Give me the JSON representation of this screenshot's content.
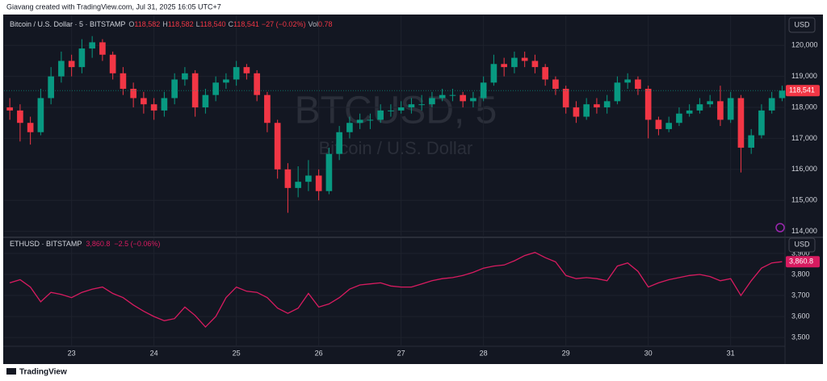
{
  "header": {
    "credit": "Giavang created with TradingView.com, Jul 31, 2025 16:05 UTC+7"
  },
  "footer": {
    "brand": "TradingView"
  },
  "chart_data": [
    {
      "type": "candlestick",
      "legend": {
        "symbol": "Bitcoin / U.S. Dollar · 5 · BITSTAMP",
        "fields": [
          {
            "label": "O",
            "value": "118,582"
          },
          {
            "label": "H",
            "value": "118,582"
          },
          {
            "label": "L",
            "value": "118,540"
          },
          {
            "label": "C",
            "value": "118,541"
          }
        ],
        "change": "−27 (−0.02%)",
        "volume": {
          "label": "Vol",
          "value": "0.78"
        }
      },
      "watermark": {
        "title": "BTCUSD, 5",
        "subtitle": "Bitcoin / U.S. Dollar"
      },
      "currency": "USD",
      "up_color": "#089981",
      "down_color": "#f23645",
      "x": [
        22.25,
        22.375,
        22.5,
        22.625,
        22.75,
        22.875,
        23,
        23.125,
        23.25,
        23.375,
        23.5,
        23.625,
        23.75,
        23.875,
        24,
        24.125,
        24.25,
        24.375,
        24.5,
        24.625,
        24.75,
        24.875,
        25,
        25.125,
        25.25,
        25.375,
        25.5,
        25.625,
        25.75,
        25.875,
        26,
        26.125,
        26.25,
        26.375,
        26.5,
        26.625,
        26.75,
        26.875,
        27,
        27.125,
        27.25,
        27.375,
        27.5,
        27.625,
        27.75,
        27.875,
        28,
        28.125,
        28.25,
        28.375,
        28.5,
        28.625,
        28.75,
        28.875,
        29,
        29.125,
        29.25,
        29.375,
        29.5,
        29.625,
        29.75,
        29.875,
        30,
        30.125,
        30.25,
        30.375,
        30.5,
        30.625,
        30.75,
        30.875,
        31,
        31.125,
        31.25,
        31.375,
        31.5,
        31.625
      ],
      "values": [
        [
          118000,
          118300,
          117600,
          117900
        ],
        [
          117900,
          118100,
          116900,
          117500
        ],
        [
          117500,
          117700,
          116800,
          117200
        ],
        [
          117200,
          118600,
          117100,
          118300
        ],
        [
          118300,
          119300,
          118100,
          119000
        ],
        [
          119000,
          119800,
          118800,
          119500
        ],
        [
          119500,
          119700,
          119000,
          119300
        ],
        [
          119300,
          120200,
          119100,
          119900
        ],
        [
          119900,
          120300,
          119600,
          120100
        ],
        [
          120100,
          120200,
          119500,
          119700
        ],
        [
          119700,
          119800,
          118900,
          119100
        ],
        [
          119100,
          119300,
          118400,
          118600
        ],
        [
          118600,
          118800,
          118000,
          118300
        ],
        [
          118300,
          118500,
          117800,
          118100
        ],
        [
          118100,
          118300,
          117600,
          117900
        ],
        [
          117900,
          118500,
          117700,
          118300
        ],
        [
          118300,
          119100,
          118100,
          118900
        ],
        [
          118900,
          119300,
          118700,
          119100
        ],
        [
          119100,
          119200,
          117700,
          118000
        ],
        [
          118000,
          118600,
          117800,
          118400
        ],
        [
          118400,
          119000,
          118200,
          118800
        ],
        [
          118800,
          119100,
          118600,
          118900
        ],
        [
          118900,
          119500,
          118700,
          119300
        ],
        [
          119300,
          119400,
          118900,
          119100
        ],
        [
          119100,
          119200,
          118200,
          118400
        ],
        [
          118400,
          118500,
          117200,
          117500
        ],
        [
          117500,
          117600,
          115700,
          116000
        ],
        [
          116000,
          116200,
          114600,
          115400
        ],
        [
          115400,
          116100,
          115100,
          115600
        ],
        [
          115600,
          116300,
          115300,
          115800
        ],
        [
          115800,
          116000,
          115000,
          115300
        ],
        [
          115300,
          116700,
          115200,
          116500
        ],
        [
          116500,
          117400,
          116300,
          117200
        ],
        [
          117200,
          117700,
          117000,
          117500
        ],
        [
          117500,
          117800,
          117300,
          117600
        ],
        [
          117600,
          117800,
          117300,
          117600
        ],
        [
          117600,
          118100,
          117500,
          117900
        ],
        [
          117900,
          118100,
          117700,
          117900
        ],
        [
          117900,
          118200,
          117800,
          118000
        ],
        [
          118000,
          118300,
          117800,
          118100
        ],
        [
          118100,
          118400,
          117900,
          118100
        ],
        [
          118100,
          118500,
          118000,
          118300
        ],
        [
          118300,
          118600,
          118200,
          118400
        ],
        [
          118400,
          118600,
          118200,
          118400
        ],
        [
          118400,
          118500,
          118000,
          118200
        ],
        [
          118200,
          118500,
          118000,
          118300
        ],
        [
          118300,
          119000,
          118200,
          118800
        ],
        [
          118800,
          119700,
          118700,
          119400
        ],
        [
          119400,
          119600,
          119000,
          119300
        ],
        [
          119300,
          119800,
          119100,
          119600
        ],
        [
          119600,
          119800,
          119300,
          119500
        ],
        [
          119500,
          119700,
          119100,
          119300
        ],
        [
          119300,
          119400,
          118700,
          118900
        ],
        [
          118900,
          119000,
          118400,
          118600
        ],
        [
          118600,
          118700,
          117800,
          118000
        ],
        [
          118000,
          118200,
          117500,
          117700
        ],
        [
          117700,
          118300,
          117600,
          118100
        ],
        [
          118100,
          118300,
          117800,
          118000
        ],
        [
          118000,
          118400,
          117800,
          118200
        ],
        [
          118200,
          119000,
          118100,
          118800
        ],
        [
          118800,
          119100,
          118600,
          118900
        ],
        [
          118900,
          119000,
          118400,
          118600
        ],
        [
          118600,
          118700,
          117000,
          117600
        ],
        [
          117600,
          117700,
          117100,
          117300
        ],
        [
          117300,
          117700,
          117200,
          117500
        ],
        [
          117500,
          118000,
          117400,
          117800
        ],
        [
          117800,
          118100,
          117700,
          117900
        ],
        [
          117900,
          118300,
          117800,
          118100
        ],
        [
          118100,
          118400,
          118000,
          118200
        ],
        [
          118200,
          118700,
          117400,
          117600
        ],
        [
          117600,
          118500,
          117500,
          118300
        ],
        [
          118300,
          118400,
          115900,
          116700
        ],
        [
          116700,
          117300,
          116500,
          117100
        ],
        [
          117100,
          118100,
          117000,
          117900
        ],
        [
          117900,
          118500,
          117800,
          118300
        ],
        [
          118300,
          118700,
          118200,
          118541
        ]
      ],
      "last_value_label": "118,541",
      "ylim": [
        113860,
        120970
      ],
      "yticks": [
        {
          "value": 114000,
          "label": "114,000"
        },
        {
          "value": 115000,
          "label": "115,000"
        },
        {
          "value": 116000,
          "label": "116,000"
        },
        {
          "value": 117000,
          "label": "117,000"
        },
        {
          "value": 118000,
          "label": "118,000"
        },
        {
          "value": 119000,
          "label": "119,000"
        },
        {
          "value": 120000,
          "label": "120,000"
        }
      ],
      "xlim": [
        22.18,
        31.66
      ]
    },
    {
      "type": "line",
      "legend": {
        "symbol": "ETHUSD · BITSTAMP",
        "value": "3,860.8",
        "change": "−2.5 (−0.06%)"
      },
      "currency": "USD",
      "color": "#d81b60",
      "x": [
        22.25,
        22.375,
        22.5,
        22.625,
        22.75,
        22.875,
        23,
        23.125,
        23.25,
        23.375,
        23.5,
        23.625,
        23.75,
        23.875,
        24,
        24.125,
        24.25,
        24.375,
        24.5,
        24.625,
        24.75,
        24.875,
        25,
        25.125,
        25.25,
        25.375,
        25.5,
        25.625,
        25.75,
        25.875,
        26,
        26.125,
        26.25,
        26.375,
        26.5,
        26.625,
        26.75,
        26.875,
        27,
        27.125,
        27.25,
        27.375,
        27.5,
        27.625,
        27.75,
        27.875,
        28,
        28.125,
        28.25,
        28.375,
        28.5,
        28.625,
        28.75,
        28.875,
        29,
        29.125,
        29.25,
        29.375,
        29.5,
        29.625,
        29.75,
        29.875,
        30,
        30.125,
        30.25,
        30.375,
        30.5,
        30.625,
        30.75,
        30.875,
        31,
        31.125,
        31.25,
        31.375,
        31.5,
        31.625
      ],
      "values": [
        3760,
        3775,
        3740,
        3670,
        3715,
        3705,
        3690,
        3715,
        3730,
        3740,
        3710,
        3690,
        3655,
        3625,
        3600,
        3580,
        3590,
        3645,
        3605,
        3550,
        3600,
        3690,
        3740,
        3720,
        3715,
        3690,
        3640,
        3615,
        3640,
        3710,
        3645,
        3660,
        3690,
        3730,
        3750,
        3755,
        3760,
        3745,
        3740,
        3740,
        3755,
        3770,
        3780,
        3785,
        3795,
        3810,
        3830,
        3840,
        3845,
        3865,
        3890,
        3905,
        3880,
        3860,
        3795,
        3780,
        3785,
        3780,
        3770,
        3840,
        3855,
        3815,
        3740,
        3760,
        3775,
        3785,
        3795,
        3800,
        3790,
        3770,
        3780,
        3700,
        3770,
        3830,
        3855,
        3860.8
      ],
      "last_value_label": "3,860.8",
      "ylim": [
        3462,
        3973
      ],
      "yticks": [
        {
          "value": 3500,
          "label": "3,500"
        },
        {
          "value": 3600,
          "label": "3,600"
        },
        {
          "value": 3700,
          "label": "3,700"
        },
        {
          "value": 3800,
          "label": "3,800"
        },
        {
          "value": 3900,
          "label": "3,900"
        }
      ],
      "xlim": [
        22.18,
        31.66
      ],
      "xticks": [
        23,
        24,
        25,
        26,
        27,
        28,
        29,
        30,
        31
      ]
    }
  ]
}
